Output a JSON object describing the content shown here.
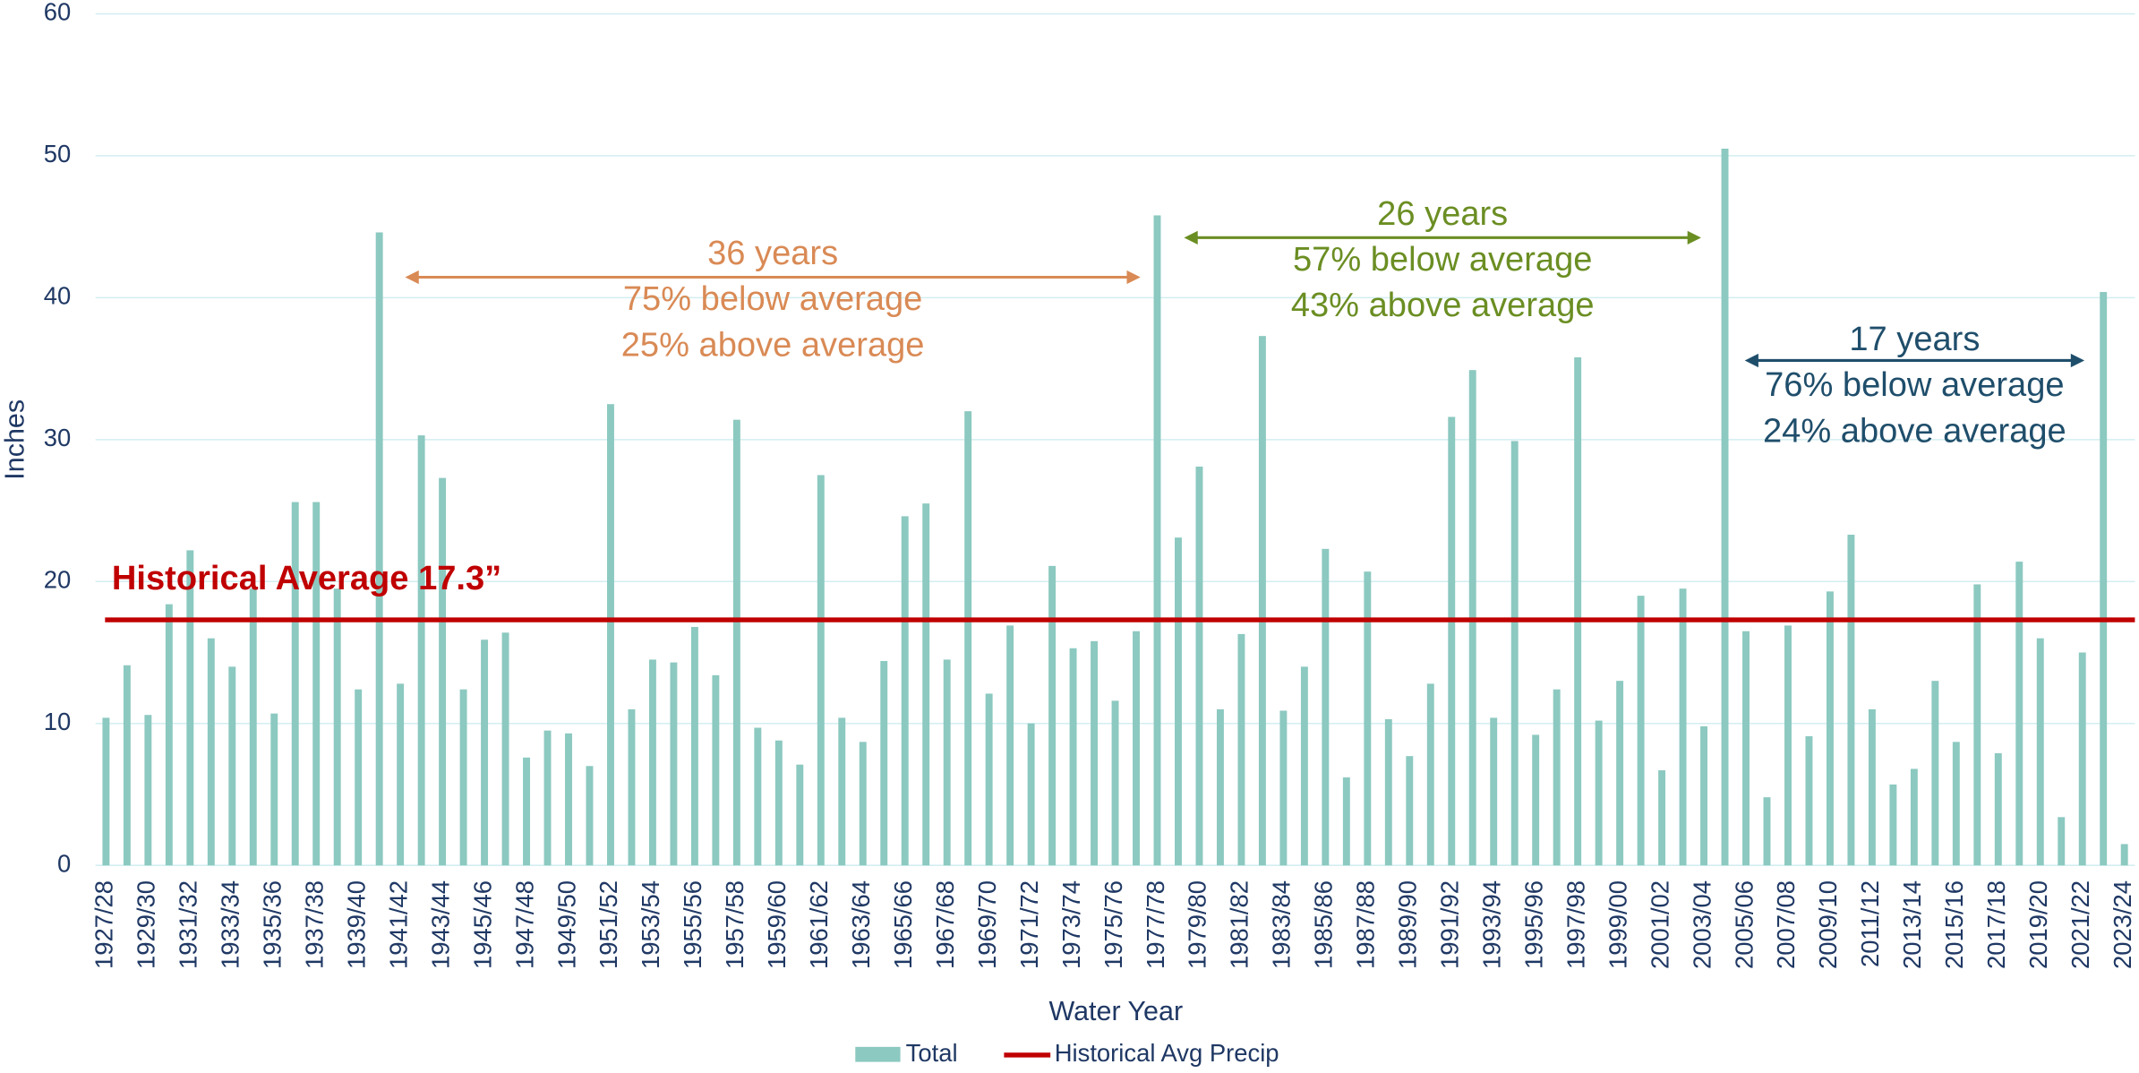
{
  "chart_data": {
    "type": "bar",
    "x_label": "Water Year",
    "y_label": "Inches",
    "categories": [
      "1927/28",
      null,
      "1929/30",
      null,
      "1931/32",
      null,
      "1933/34",
      null,
      "1935/36",
      null,
      "1937/38",
      null,
      "1939/40",
      null,
      "1941/42",
      null,
      "1943/44",
      null,
      "1945/46",
      null,
      "1947/48",
      null,
      "1949/50",
      null,
      "1951/52",
      null,
      "1953/54",
      null,
      "1955/56",
      null,
      "1957/58",
      null,
      "1959/60",
      null,
      "1961/62",
      null,
      "1963/64",
      null,
      "1965/66",
      null,
      "1967/68",
      null,
      "1969/70",
      null,
      "1971/72",
      null,
      "1973/74",
      null,
      "1975/76",
      null,
      "1977/78",
      null,
      "1979/80",
      null,
      "1981/82",
      null,
      "1983/84",
      null,
      "1985/86",
      null,
      "1987/88",
      null,
      "1989/90",
      null,
      "1991/92",
      null,
      "1993/94",
      null,
      "1995/96",
      null,
      "1997/98",
      null,
      "1999/00",
      null,
      "2001/02",
      null,
      "2003/04",
      null,
      "2005/06",
      null,
      "2007/08",
      null,
      "2009/10",
      null,
      "2011/12",
      null,
      "2013/14",
      null,
      "2015/16",
      null,
      "2017/18",
      null,
      "2019/20",
      null,
      "2021/22",
      null,
      "2023/24"
    ],
    "series": [
      {
        "name": "Total",
        "color": "#8cc9c0",
        "values": [
          10.4,
          14.1,
          10.6,
          18.4,
          22.2,
          16.0,
          14.0,
          19.5,
          10.7,
          25.6,
          25.6,
          19.5,
          12.4,
          44.6,
          12.8,
          30.3,
          27.3,
          12.4,
          15.9,
          16.4,
          7.6,
          9.5,
          9.3,
          7.0,
          32.5,
          11.0,
          14.5,
          14.3,
          16.8,
          13.4,
          31.4,
          9.7,
          8.8,
          7.1,
          27.5,
          10.4,
          8.7,
          14.4,
          24.6,
          25.5,
          14.5,
          32.0,
          12.1,
          16.9,
          10.0,
          21.1,
          15.3,
          15.8,
          11.6,
          16.5,
          45.8,
          23.1,
          28.1,
          11.0,
          16.3,
          37.3,
          10.9,
          14.0,
          22.3,
          6.2,
          20.7,
          10.3,
          7.7,
          12.8,
          31.6,
          34.9,
          10.4,
          29.9,
          9.2,
          12.4,
          35.8,
          10.2,
          13.0,
          19.0,
          6.7,
          19.5,
          9.8,
          50.5,
          16.5,
          4.8,
          16.9,
          9.1,
          19.3,
          23.3,
          11.0,
          5.7,
          6.8,
          13.0,
          8.7,
          19.8,
          7.9,
          21.4,
          16.0,
          3.4,
          15.0,
          40.4,
          1.5
        ]
      }
    ],
    "average_line": {
      "name": "Historical Avg Precip",
      "value": 17.3,
      "color": "#c00000",
      "label": "Historical Average 17.3”"
    },
    "annotations": [
      {
        "lines": [
          "36 years",
          "75% below average",
          "25% above average"
        ],
        "color": "#d98a55"
      },
      {
        "lines": [
          "26 years",
          "57% below average",
          "43% above average"
        ],
        "color": "#6b8e23"
      },
      {
        "lines": [
          "17 years",
          "76% below average",
          "24% above average"
        ],
        "color": "#1f4e6b"
      }
    ],
    "ylim": [
      0,
      60
    ],
    "yticks": [
      0,
      10,
      20,
      30,
      40,
      50,
      60
    ],
    "grid": true
  }
}
